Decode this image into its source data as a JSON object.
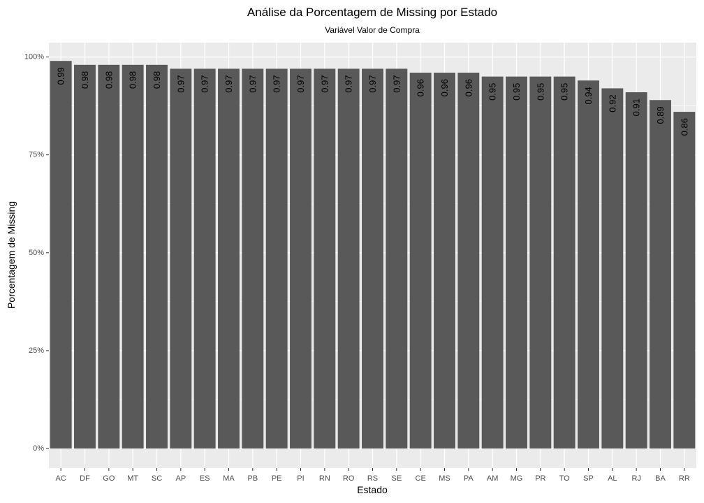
{
  "chart_data": {
    "type": "bar",
    "title": "Análise da Porcentagem de Missing por Estado",
    "subtitle": "Variável Valor de Compra",
    "xlabel": "Estado",
    "ylabel": "Porcentagem de Missing",
    "categories": [
      "AC",
      "DF",
      "GO",
      "MT",
      "SC",
      "AP",
      "ES",
      "MA",
      "PB",
      "PE",
      "PI",
      "RN",
      "RO",
      "RS",
      "SE",
      "CE",
      "MS",
      "PA",
      "AM",
      "MG",
      "PR",
      "TO",
      "SP",
      "AL",
      "RJ",
      "BA",
      "RR"
    ],
    "values": [
      0.99,
      0.98,
      0.98,
      0.98,
      0.98,
      0.97,
      0.97,
      0.97,
      0.97,
      0.97,
      0.97,
      0.97,
      0.97,
      0.97,
      0.97,
      0.96,
      0.96,
      0.96,
      0.95,
      0.95,
      0.95,
      0.95,
      0.94,
      0.92,
      0.91,
      0.89,
      0.86
    ],
    "data_labels": [
      "0.99",
      "0.98",
      "0.98",
      "0.98",
      "0.98",
      "0.97",
      "0.97",
      "0.97",
      "0.97",
      "0.97",
      "0.97",
      "0.97",
      "0.97",
      "0.97",
      "0.97",
      "0.96",
      "0.96",
      "0.96",
      "0.95",
      "0.95",
      "0.95",
      "0.95",
      "0.94",
      "0.92",
      "0.91",
      "0.89",
      "0.86"
    ],
    "ylim": [
      0,
      1
    ],
    "y_ticks": [
      0,
      0.25,
      0.5,
      0.75,
      1.0
    ],
    "y_tick_labels": [
      "0%",
      "25%",
      "50%",
      "75%",
      "100%"
    ],
    "grid": true,
    "legend": "none",
    "colors": {
      "bar": "#595959",
      "panel": "#ebebeb",
      "grid": "#ffffff",
      "tick_text": "#4d4d4d",
      "tick_mark": "#333333"
    }
  }
}
